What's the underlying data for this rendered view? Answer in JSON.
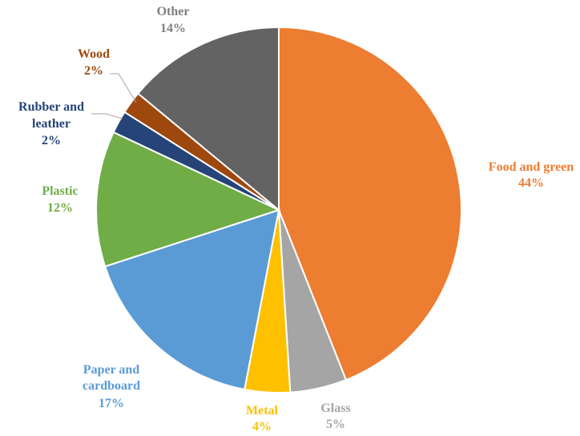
{
  "chart_data": {
    "type": "pie",
    "title": "",
    "start_angle_deg": 0,
    "direction": "clockwise",
    "slices": [
      {
        "label": "Food and green",
        "value": 44,
        "value_text": "44%",
        "color": "#ED7D31",
        "label_color": "#ED7D31"
      },
      {
        "label": "Glass",
        "value": 5,
        "value_text": "5%",
        "color": "#A5A5A5",
        "label_color": "#A5A5A5"
      },
      {
        "label": "Metal",
        "value": 4,
        "value_text": "4%",
        "color": "#FFC000",
        "label_color": "#FFC000"
      },
      {
        "label": "Paper and cardboard",
        "value": 17,
        "value_text": "17%",
        "color": "#5B9BD5",
        "label_color": "#5B9BD5"
      },
      {
        "label": "Plastic",
        "value": 12,
        "value_text": "12%",
        "color": "#70AD47",
        "label_color": "#70AD47"
      },
      {
        "label": "Rubber and leather",
        "value": 2,
        "value_text": "2%",
        "color": "#264478",
        "label_color": "#264478"
      },
      {
        "label": "Wood",
        "value": 2,
        "value_text": "2%",
        "color": "#9E480E",
        "label_color": "#9E480E"
      },
      {
        "label": "Other",
        "value": 14,
        "value_text": "14%",
        "color": "#636363",
        "label_color": "#7F7F7F"
      }
    ]
  }
}
